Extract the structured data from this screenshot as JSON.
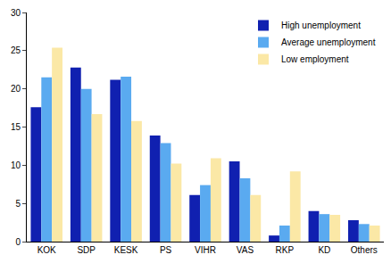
{
  "chart_data": {
    "type": "bar",
    "categories": [
      "KOK",
      "SDP",
      "KESK",
      "PS",
      "VIHR",
      "VAS",
      "RKP",
      "KD",
      "Others"
    ],
    "series": [
      {
        "name": "High unemployment",
        "color": "#1020b0",
        "values": [
          17.6,
          22.8,
          21.2,
          13.9,
          6.1,
          10.5,
          0.8,
          4.0,
          2.8
        ]
      },
      {
        "name": "Average unemployment",
        "color": "#5aaaf0",
        "values": [
          21.5,
          20.0,
          21.6,
          12.9,
          7.4,
          8.3,
          2.1,
          3.6,
          2.3
        ]
      },
      {
        "name": "Low employment",
        "color": "#fbe8a6",
        "values": [
          25.4,
          16.7,
          15.8,
          10.2,
          10.9,
          6.1,
          9.2,
          3.5,
          2.1
        ]
      }
    ],
    "ylim": [
      0,
      30
    ],
    "yticks": [
      0,
      5,
      10,
      15,
      20,
      25,
      30
    ],
    "grid": false,
    "legend": "top-right"
  }
}
